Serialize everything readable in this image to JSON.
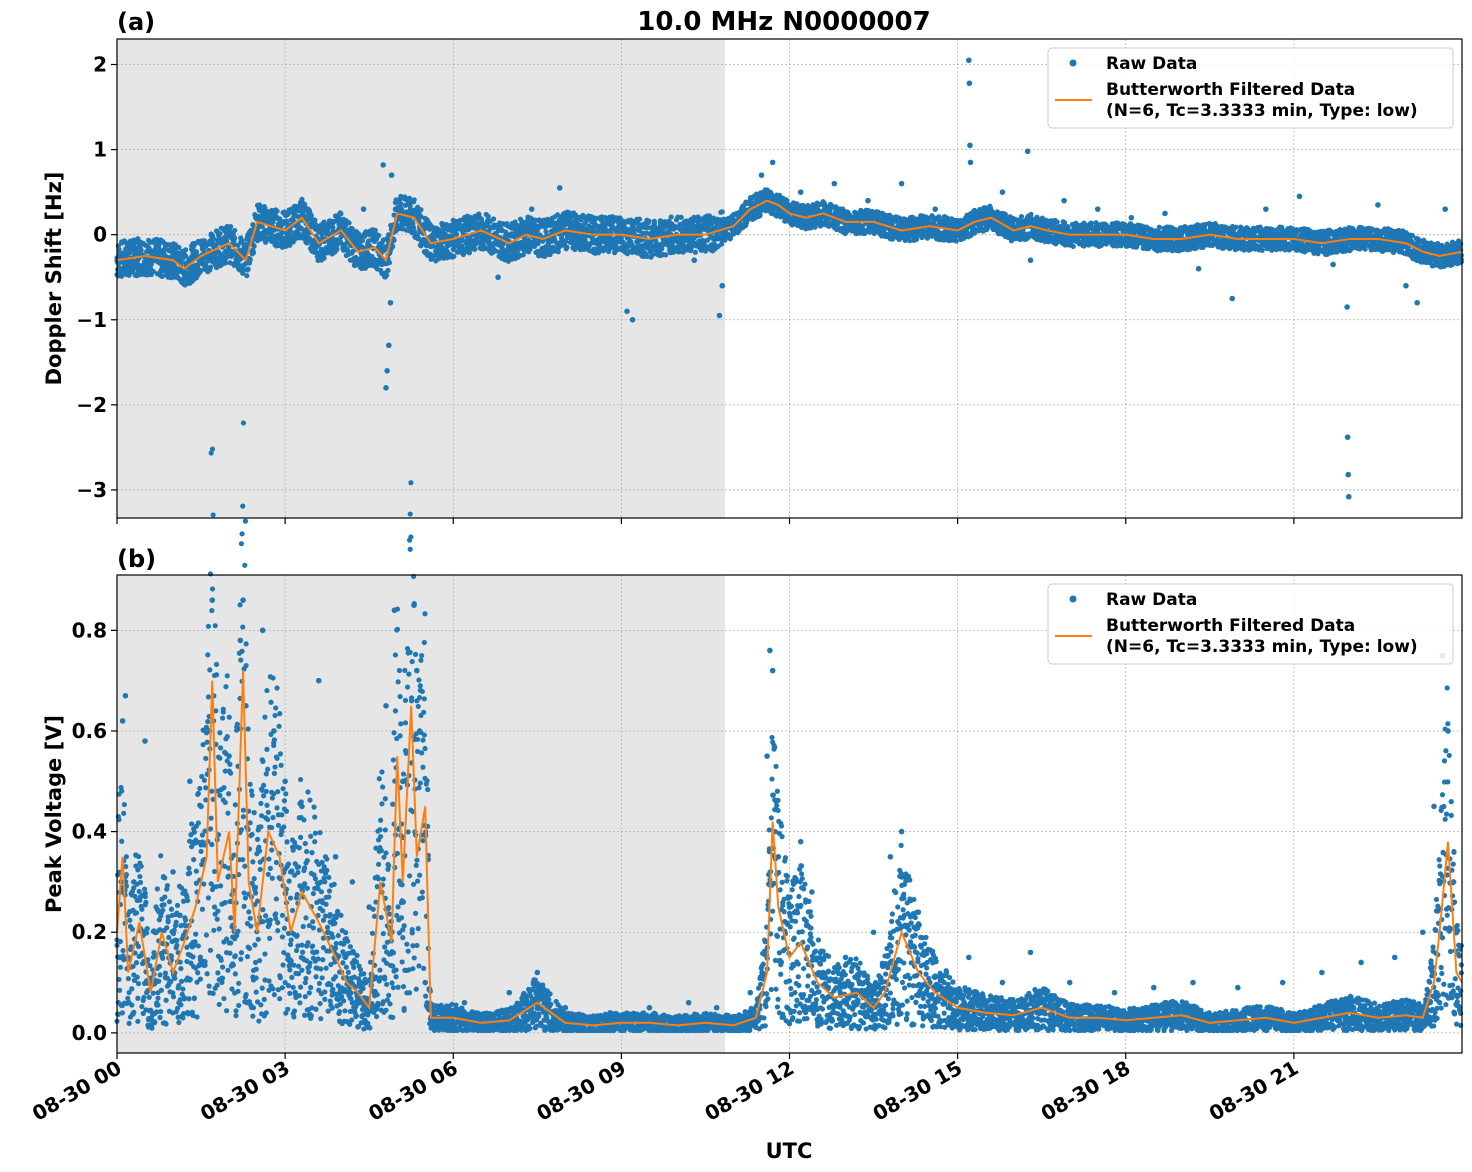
{
  "title": "10.0 MHz N0000007",
  "xlabel": "UTC",
  "x_ticks": [
    "08-30 00",
    "08-30 03",
    "08-30 06",
    "08-30 09",
    "08-30 12",
    "08-30 15",
    "08-30 18",
    "08-30 21"
  ],
  "x_range_hours": [
    0,
    24
  ],
  "night_shading_hours": [
    0,
    10.85
  ],
  "colors": {
    "raw": "#1f77b4",
    "filtered": "#ff7f0e",
    "shade": "#e6e6e6",
    "grid": "#b0b0b0"
  },
  "legend": {
    "raw_label": "Raw Data",
    "filtered_line1": "Butterworth Filtered Data",
    "filtered_line2": "(N=6, Tc=3.3333 min, Type: low)",
    "placement": "upper right"
  },
  "chart_data": [
    {
      "type": "scatter+line",
      "panel_label": "(a)",
      "ylabel": "Doppler Shift [Hz]",
      "ylim": [
        -3.33,
        2.3
      ],
      "y_ticks": [
        2,
        1,
        0,
        -1,
        -2,
        -3
      ],
      "y_tick_labels": [
        "2",
        "1",
        "0",
        "−1",
        "−2",
        "−3"
      ],
      "grid": true,
      "series": [
        {
          "name": "Butterworth Filtered Data",
          "kind": "line",
          "x": [
            0,
            0.5,
            1,
            1.2,
            1.5,
            2,
            2.3,
            2.5,
            3,
            3.3,
            3.6,
            4,
            4.3,
            4.6,
            4.8,
            5,
            5.3,
            5.6,
            6,
            6.5,
            7,
            7.3,
            7.6,
            8,
            8.5,
            9,
            9.5,
            10,
            10.5,
            11,
            11.3,
            11.6,
            11.8,
            12,
            12.3,
            12.6,
            13,
            13.5,
            14,
            14.5,
            15,
            15.3,
            15.6,
            16,
            16.3,
            16.6,
            17,
            17.5,
            18,
            18.5,
            19,
            19.5,
            20,
            20.5,
            21,
            21.5,
            22,
            22.5,
            23,
            23.3,
            23.6,
            24
          ],
          "y": [
            -0.3,
            -0.25,
            -0.3,
            -0.4,
            -0.25,
            -0.1,
            -0.3,
            0.15,
            0.05,
            0.2,
            -0.1,
            0.05,
            -0.2,
            -0.15,
            -0.3,
            0.25,
            0.2,
            -0.1,
            -0.05,
            0.05,
            -0.1,
            0.0,
            -0.05,
            0.05,
            0.0,
            0.0,
            -0.05,
            0.0,
            0.0,
            0.1,
            0.3,
            0.4,
            0.35,
            0.25,
            0.2,
            0.25,
            0.15,
            0.15,
            0.05,
            0.1,
            0.05,
            0.15,
            0.2,
            0.05,
            0.1,
            0.05,
            0.0,
            0.0,
            0.0,
            -0.05,
            -0.05,
            0.0,
            -0.05,
            -0.05,
            -0.05,
            -0.1,
            -0.05,
            -0.05,
            -0.1,
            -0.2,
            -0.25,
            -0.2
          ]
        },
        {
          "name": "Raw Data",
          "kind": "points",
          "x": [
            0.2,
            0.8,
            1.4,
            2.0,
            2.6,
            3.2,
            3.8,
            4.4,
            4.75,
            4.8,
            4.82,
            4.85,
            4.88,
            4.9,
            5.2,
            5.6,
            6.2,
            6.8,
            7.4,
            7.9,
            8.5,
            9.1,
            9.2,
            9.7,
            10.3,
            10.75,
            10.8,
            11.5,
            11.7,
            12.2,
            12.8,
            13.4,
            14.0,
            14.6,
            15.2,
            15.21,
            15.22,
            15.23,
            15.8,
            16.25,
            16.3,
            16.9,
            17.5,
            18.1,
            18.7,
            19.3,
            19.9,
            20.5,
            21.1,
            21.7,
            21.95,
            21.96,
            21.97,
            21.98,
            22.5,
            23.0,
            23.2,
            23.7
          ],
          "y": [
            -0.35,
            -0.3,
            -0.45,
            0.05,
            0.2,
            0.3,
            0.0,
            0.3,
            0.82,
            -1.8,
            -1.6,
            -1.3,
            -0.8,
            0.7,
            0.4,
            -0.25,
            0.1,
            -0.5,
            0.3,
            0.55,
            -0.2,
            -0.9,
            -1.0,
            0.15,
            -0.3,
            -0.95,
            -0.6,
            0.7,
            0.85,
            0.5,
            0.6,
            0.4,
            0.6,
            0.3,
            2.05,
            1.78,
            1.05,
            0.85,
            0.5,
            0.98,
            -0.3,
            0.4,
            0.3,
            0.2,
            0.25,
            -0.4,
            -0.75,
            0.3,
            0.45,
            -0.35,
            -0.85,
            -2.38,
            -2.82,
            -3.08,
            0.35,
            -0.6,
            -0.8,
            0.3
          ]
        }
      ]
    },
    {
      "type": "scatter+line",
      "panel_label": "(b)",
      "ylabel": "Peak Voltage [V]",
      "ylim": [
        -0.04,
        0.91
      ],
      "y_ticks": [
        0.0,
        0.2,
        0.4,
        0.6,
        0.8
      ],
      "y_tick_labels": [
        "0.0",
        "0.2",
        "0.4",
        "0.6",
        "0.8"
      ],
      "grid": true,
      "series": [
        {
          "name": "Butterworth Filtered Data",
          "kind": "line",
          "x": [
            0,
            0.1,
            0.2,
            0.4,
            0.6,
            0.8,
            1.0,
            1.2,
            1.4,
            1.6,
            1.7,
            1.8,
            2.0,
            2.1,
            2.25,
            2.35,
            2.5,
            2.7,
            2.9,
            3.1,
            3.3,
            3.6,
            3.9,
            4.1,
            4.3,
            4.5,
            4.7,
            4.9,
            5.0,
            5.1,
            5.25,
            5.35,
            5.5,
            5.6,
            6,
            6.5,
            7,
            7.5,
            8,
            8.5,
            9,
            9.5,
            10,
            10.5,
            11,
            11.4,
            11.6,
            11.7,
            11.8,
            12.0,
            12.2,
            12.5,
            12.8,
            13.2,
            13.5,
            13.7,
            14.0,
            14.3,
            14.6,
            15.0,
            15.5,
            16,
            16.5,
            17,
            17.5,
            18,
            18.5,
            19,
            19.5,
            20,
            20.5,
            21,
            21.5,
            22,
            22.5,
            23,
            23.3,
            23.5,
            23.6,
            23.75,
            23.9,
            24
          ],
          "y": [
            0.2,
            0.35,
            0.12,
            0.22,
            0.08,
            0.2,
            0.12,
            0.18,
            0.25,
            0.35,
            0.7,
            0.3,
            0.4,
            0.2,
            0.72,
            0.3,
            0.2,
            0.4,
            0.35,
            0.2,
            0.28,
            0.22,
            0.15,
            0.1,
            0.08,
            0.05,
            0.3,
            0.18,
            0.55,
            0.3,
            0.65,
            0.35,
            0.45,
            0.03,
            0.03,
            0.02,
            0.025,
            0.06,
            0.02,
            0.015,
            0.02,
            0.02,
            0.015,
            0.02,
            0.015,
            0.03,
            0.12,
            0.42,
            0.25,
            0.15,
            0.18,
            0.1,
            0.07,
            0.08,
            0.05,
            0.08,
            0.2,
            0.12,
            0.08,
            0.05,
            0.04,
            0.035,
            0.05,
            0.03,
            0.03,
            0.025,
            0.03,
            0.035,
            0.02,
            0.025,
            0.03,
            0.02,
            0.03,
            0.04,
            0.03,
            0.035,
            0.03,
            0.1,
            0.2,
            0.38,
            0.12,
            0.1
          ]
        },
        {
          "name": "Raw Data",
          "kind": "points",
          "x": [
            0.05,
            0.1,
            0.15,
            0.3,
            0.5,
            0.7,
            1.0,
            1.3,
            1.5,
            1.65,
            1.7,
            1.72,
            2.0,
            2.2,
            2.25,
            2.3,
            2.6,
            2.8,
            3.0,
            3.3,
            3.6,
            3.9,
            4.2,
            4.5,
            4.8,
            4.95,
            5.1,
            5.3,
            5.35,
            5.4,
            5.5,
            6.2,
            7.0,
            7.5,
            8.0,
            8.8,
            9.5,
            10.2,
            10.7,
            11.3,
            11.6,
            11.65,
            11.7,
            11.8,
            12.0,
            12.2,
            12.4,
            12.6,
            13.0,
            13.5,
            13.8,
            14.0,
            14.3,
            14.8,
            15.2,
            15.8,
            16.3,
            17.0,
            17.8,
            18.5,
            19.2,
            20.0,
            20.8,
            21.5,
            22.2,
            22.8,
            23.3,
            23.5,
            23.65,
            23.75,
            23.85
          ],
          "y": [
            0.15,
            0.62,
            0.67,
            0.3,
            0.58,
            0.2,
            0.32,
            0.5,
            0.45,
            0.6,
            0.86,
            0.62,
            0.55,
            0.78,
            0.86,
            0.65,
            0.8,
            0.6,
            0.5,
            0.45,
            0.7,
            0.35,
            0.3,
            0.25,
            0.65,
            0.84,
            0.5,
            0.85,
            0.72,
            0.6,
            0.1,
            0.06,
            0.08,
            0.12,
            0.05,
            0.04,
            0.05,
            0.06,
            0.05,
            0.08,
            0.55,
            0.76,
            0.72,
            0.35,
            0.25,
            0.38,
            0.28,
            0.12,
            0.15,
            0.2,
            0.35,
            0.4,
            0.24,
            0.12,
            0.15,
            0.1,
            0.16,
            0.1,
            0.08,
            0.09,
            0.1,
            0.09,
            0.1,
            0.12,
            0.14,
            0.15,
            0.2,
            0.45,
            0.75,
            0.6,
            0.3
          ]
        }
      ]
    }
  ]
}
